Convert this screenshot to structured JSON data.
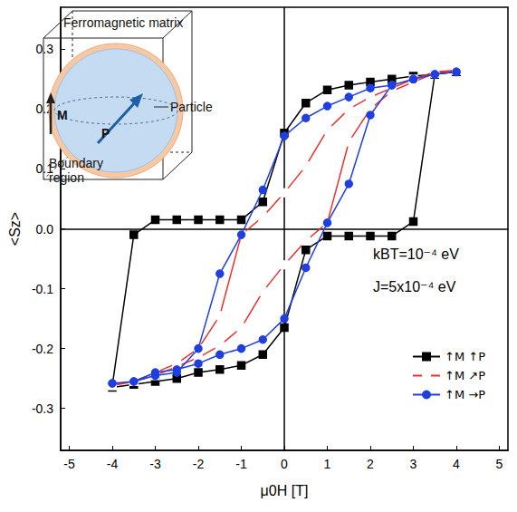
{
  "chart_data": {
    "type": "line",
    "xlabel": "μ0H [T]",
    "ylabel": "<Sz>",
    "xlim": [
      -5.2,
      5.2
    ],
    "xticks": [
      -5,
      -4,
      -3,
      -2,
      -1,
      0,
      1,
      2,
      3,
      4,
      5
    ],
    "ylim": [
      -0.37,
      0.37
    ],
    "yticks": [
      -0.3,
      -0.2,
      -0.1,
      {
        "value": 0,
        "label": "0.0"
      },
      0.1,
      0.2,
      0.3
    ],
    "legend": "lower right",
    "annotations": [
      "kBT=10⁻⁴ eV",
      "J=5x10⁻⁴ eV"
    ],
    "inset": {
      "matrix": "Ferromagnetic matrix",
      "particle": "Particle",
      "boundary": "Boundary region",
      "magnetization": "M",
      "polarization": "P"
    },
    "series": [
      {
        "name": "↑M ↑P",
        "color": "#000000",
        "marker": "square",
        "x": [
          4,
          3.5,
          3,
          2.5,
          2,
          1.5,
          1,
          0.5,
          0,
          -0.5,
          -1,
          -1.5,
          -2,
          -2.5,
          -3,
          -3.5,
          -4,
          -4,
          -3.5,
          -3,
          -2.5,
          -2,
          -1.5,
          -1,
          -0.5,
          0,
          0.5,
          1,
          1.5,
          2,
          2.5,
          3,
          3.5,
          4
        ],
        "values": [
          0.262,
          0.258,
          0.255,
          0.25,
          0.245,
          0.24,
          0.232,
          0.21,
          0.16,
          0.045,
          0.015,
          0.015,
          0.015,
          0.015,
          0.015,
          -0.01,
          -0.262,
          -0.265,
          -0.26,
          -0.255,
          -0.25,
          -0.24,
          -0.235,
          -0.228,
          -0.21,
          -0.165,
          -0.035,
          -0.012,
          -0.012,
          -0.012,
          -0.012,
          0.012,
          0.258,
          0.262
        ]
      },
      {
        "name": "↑M ↗P",
        "color": "#e8312f",
        "marker": "open_square",
        "x": [
          4,
          3.5,
          3,
          2.5,
          2,
          1.5,
          1,
          0.5,
          0,
          -0.5,
          -1,
          -1.5,
          -2,
          -2.5,
          -3,
          -3.5,
          -4,
          -4,
          -3.5,
          -3,
          -2.5,
          -2,
          -1.5,
          -1,
          -0.5,
          0,
          0.5,
          1,
          1.5,
          2,
          2.5,
          3,
          3.5,
          4
        ],
        "values": [
          0.265,
          0.262,
          0.25,
          0.235,
          0.22,
          0.2,
          0.165,
          0.105,
          0.06,
          0.02,
          -0.01,
          -0.145,
          -0.2,
          -0.225,
          -0.24,
          -0.255,
          -0.26,
          -0.262,
          -0.255,
          -0.245,
          -0.23,
          -0.215,
          -0.195,
          -0.165,
          -0.105,
          -0.06,
          -0.02,
          0.01,
          0.145,
          0.2,
          0.23,
          0.245,
          0.26,
          0.265
        ]
      },
      {
        "name": "↑M →P",
        "color": "#1f3fe0",
        "marker": "circle",
        "x": [
          4,
          3.5,
          3,
          2.5,
          2,
          1.5,
          1,
          0.5,
          0,
          -0.5,
          -1,
          -1.5,
          -2,
          -2.5,
          -3,
          -3.5,
          -4,
          -4,
          -3.5,
          -3,
          -2.5,
          -2,
          -1.5,
          -1,
          -0.5,
          0,
          0.5,
          1,
          1.5,
          2,
          2.5,
          3,
          3.5,
          4
        ],
        "values": [
          0.262,
          0.258,
          0.25,
          0.24,
          0.235,
          0.22,
          0.205,
          0.185,
          0.155,
          0.065,
          -0.01,
          -0.075,
          -0.2,
          -0.24,
          -0.245,
          -0.255,
          -0.258,
          -0.258,
          -0.255,
          -0.24,
          -0.235,
          -0.225,
          -0.21,
          -0.2,
          -0.185,
          -0.15,
          -0.065,
          0.01,
          0.075,
          0.19,
          0.24,
          0.25,
          0.258,
          0.262
        ]
      }
    ]
  }
}
